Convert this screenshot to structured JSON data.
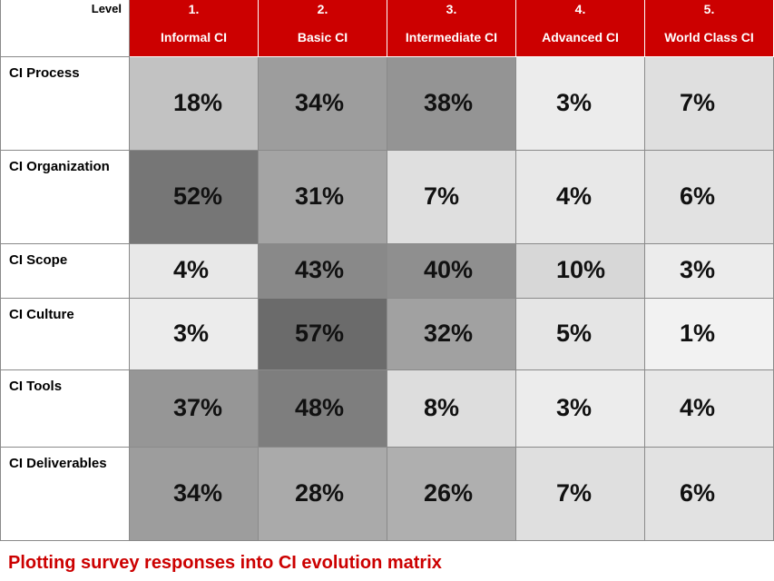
{
  "header": {
    "corner_label": "Level",
    "levels": [
      {
        "number": "1.",
        "name": "Informal CI"
      },
      {
        "number": "2.",
        "name": "Basic CI"
      },
      {
        "number": "3.",
        "name": "Intermediate CI"
      },
      {
        "number": "4.",
        "name": "Advanced CI"
      },
      {
        "number": "5.",
        "name": "World Class CI"
      }
    ]
  },
  "rows": [
    {
      "label": "CI Process",
      "values": [
        "18%",
        "34%",
        "38%",
        "3%",
        "7%"
      ]
    },
    {
      "label": "CI Organization",
      "values": [
        "52%",
        "31%",
        "7%",
        "4%",
        "6%"
      ]
    },
    {
      "label": "CI Scope",
      "values": [
        "4%",
        "43%",
        "40%",
        "10%",
        "3%"
      ]
    },
    {
      "label": "CI Culture",
      "values": [
        "3%",
        "57%",
        "32%",
        "5%",
        "1%"
      ]
    },
    {
      "label": "CI Tools",
      "values": [
        "37%",
        "48%",
        "8%",
        "3%",
        "4%"
      ]
    },
    {
      "label": "CI Deliverables",
      "values": [
        "34%",
        "28%",
        "26%",
        "7%",
        "6%"
      ]
    }
  ],
  "caption": "Plotting survey responses into CI evolution matrix",
  "colors": {
    "header_red": "#cc0000",
    "caption_red": "#cc0000",
    "shade_max": "#6b6b6b",
    "shade_min": "#f7f7f7"
  }
}
